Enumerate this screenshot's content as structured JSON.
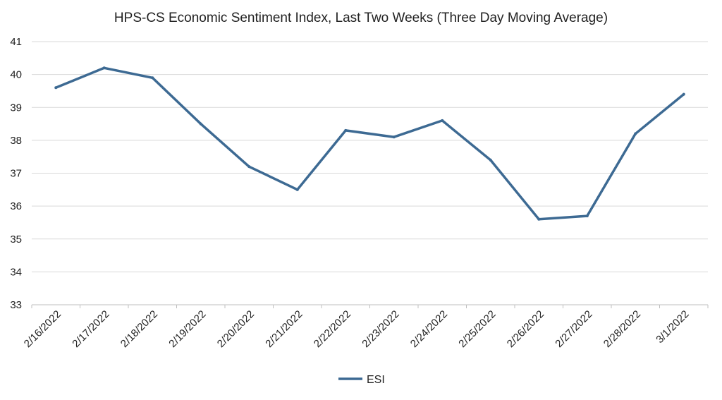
{
  "colors": {
    "series": "#3d6a93",
    "grid": "#d9d9d9",
    "axis": "#bfbfbf",
    "text": "#222222"
  },
  "chart_data": {
    "type": "line",
    "title": "HPS-CS Economic Sentiment Index, Last Two Weeks (Three Day Moving Average)",
    "xlabel": "",
    "ylabel": "",
    "ylim": [
      33,
      41
    ],
    "yticks": [
      "33",
      "34",
      "35",
      "36",
      "37",
      "38",
      "39",
      "40",
      "41"
    ],
    "grid": true,
    "legend_position": "bottom-center",
    "categories": [
      "2/16/2022",
      "2/17/2022",
      "2/18/2022",
      "2/19/2022",
      "2/20/2022",
      "2/21/2022",
      "2/22/2022",
      "2/23/2022",
      "2/24/2022",
      "2/25/2022",
      "2/26/2022",
      "2/27/2022",
      "2/28/2022",
      "3/1/2022"
    ],
    "series": [
      {
        "name": "ESI",
        "values": [
          39.6,
          40.2,
          39.9,
          38.5,
          37.2,
          36.5,
          38.3,
          38.1,
          38.6,
          37.4,
          35.6,
          35.7,
          38.2,
          39.4
        ]
      }
    ]
  }
}
